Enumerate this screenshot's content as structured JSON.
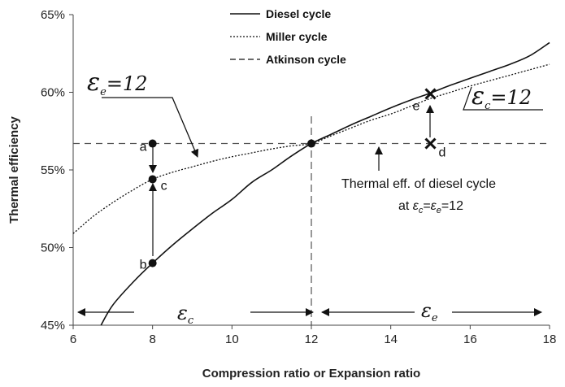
{
  "chart_data": {
    "type": "line",
    "xlabel": "Compression ratio or Expansion ratio",
    "ylabel": "Thermal efficiency",
    "xlim": [
      6,
      18
    ],
    "ylim": [
      45,
      65
    ],
    "x_ticks": [
      "6",
      "8",
      "10",
      "12",
      "14",
      "16",
      "18"
    ],
    "y_ticks": [
      "45%",
      "50%",
      "55%",
      "60%",
      "65%"
    ],
    "legend_position": "top-center",
    "grid": false,
    "series": [
      {
        "name": "Diesel cycle",
        "style": "solid",
        "x": [
          6.7,
          7,
          7.5,
          8,
          8.5,
          9,
          9.5,
          10,
          10.5,
          11,
          11.5,
          12,
          12.5,
          13,
          13.5,
          14,
          14.5,
          15,
          15.5,
          16,
          16.5,
          17,
          17.5,
          18
        ],
        "y": [
          45.0,
          46.3,
          47.75,
          49.0,
          50.15,
          51.2,
          52.2,
          53.1,
          54.2,
          55.0,
          55.9,
          56.7,
          57.3,
          57.9,
          58.45,
          59.0,
          59.5,
          59.95,
          60.45,
          60.9,
          61.35,
          61.8,
          62.35,
          63.2
        ]
      },
      {
        "name": "Miller cycle",
        "style": "dotted",
        "x": [
          6,
          6.5,
          7,
          7.5,
          8,
          8.5,
          9,
          9.5,
          10,
          10.5,
          11,
          11.5,
          12,
          12.5,
          13,
          13.5,
          14,
          14.5,
          15,
          15.5,
          16,
          16.5,
          17,
          17.5,
          18
        ],
        "y": [
          50.9,
          52.0,
          52.9,
          53.7,
          54.4,
          54.85,
          55.2,
          55.55,
          55.85,
          56.1,
          56.35,
          56.55,
          56.7,
          57.2,
          57.7,
          58.2,
          58.6,
          59.1,
          59.6,
          60.0,
          60.4,
          60.75,
          61.1,
          61.45,
          61.8
        ]
      },
      {
        "name": "Atkinson cycle",
        "style": "dashed",
        "x": [
          6,
          18
        ],
        "y": [
          56.7,
          56.7
        ]
      }
    ],
    "vertical_line": {
      "x": 12,
      "style": "dashed"
    },
    "points": [
      {
        "label": "a",
        "x": 8,
        "y": 56.7,
        "marker": "dot"
      },
      {
        "label": "b",
        "x": 8,
        "y": 49.0,
        "marker": "dot"
      },
      {
        "label": "c",
        "x": 8,
        "y": 54.4,
        "marker": "dot"
      },
      {
        "label": "",
        "x": 12,
        "y": 56.7,
        "marker": "dot"
      },
      {
        "label": "d",
        "x": 15,
        "y": 56.7,
        "marker": "cross"
      },
      {
        "label": "e",
        "x": 15,
        "y": 59.9,
        "marker": "cross"
      }
    ],
    "annotations": {
      "eps_e_label": {
        "main": "ε",
        "sub": "e",
        "suffix": "=12"
      },
      "eps_c_label": {
        "main": "ε",
        "sub": "c",
        "suffix": "=12"
      },
      "diesel_note_line1": "Thermal eff. of diesel cycle",
      "diesel_note_prefix": "at ",
      "diesel_note_eps": "ε",
      "diesel_note_sub_c": "c",
      "diesel_note_eq": "=",
      "diesel_note_sub_e": "e",
      "diesel_note_suffix": "=12",
      "range_c": {
        "main": "ε",
        "sub": "c"
      },
      "range_e": {
        "main": "ε",
        "sub": "e"
      }
    }
  }
}
